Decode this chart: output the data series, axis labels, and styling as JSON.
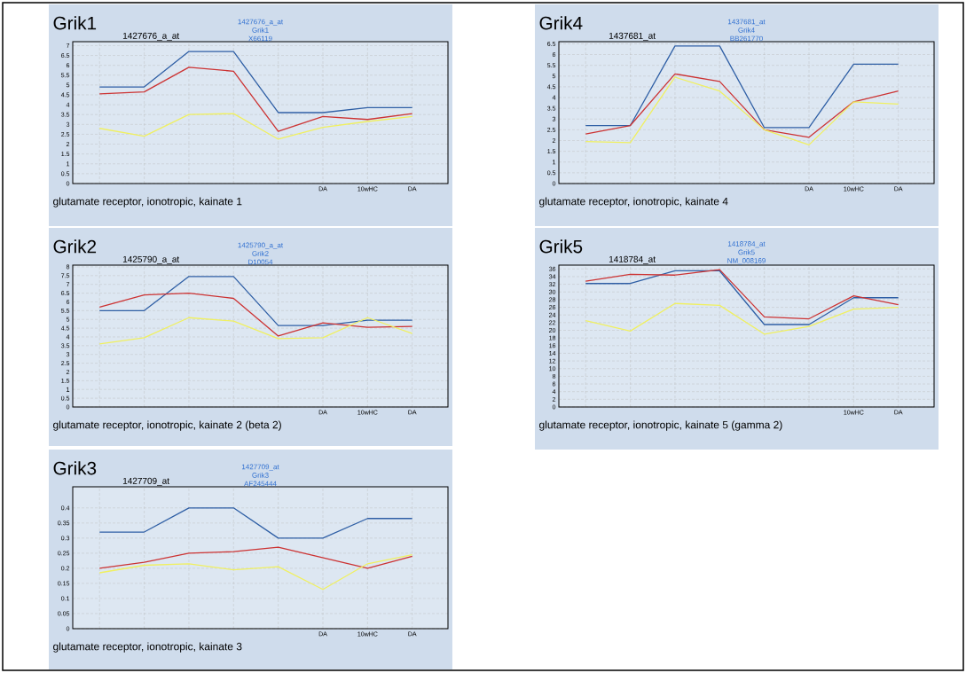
{
  "chart_data": [
    {
      "type": "line",
      "title": "Grik1",
      "subtitle": "1427676_a_at",
      "xlabel": "glutamate receptor, ionotropic, kainate 1",
      "annotations": [
        "1427676_a_at",
        "Grik1",
        "X66119"
      ],
      "categories": [
        null,
        null,
        null,
        null,
        null,
        "DA",
        "10wHC",
        "DA"
      ],
      "grid": true,
      "ylim": [
        0,
        7.2
      ],
      "yticks": [
        0,
        0.5,
        1,
        1.5,
        2,
        2.5,
        3,
        3.5,
        4,
        4.5,
        5,
        5.5,
        6,
        6.5,
        7
      ],
      "series": [
        {
          "color": "#2f5fa5",
          "values": [
            4.9,
            4.9,
            6.7,
            6.7,
            3.6,
            3.6,
            3.85,
            3.85
          ]
        },
        {
          "color": "#cc3333",
          "values": [
            4.55,
            4.65,
            5.9,
            5.7,
            2.65,
            3.4,
            3.25,
            3.55
          ]
        },
        {
          "color": "#f0f060",
          "values": [
            2.8,
            2.4,
            3.5,
            3.55,
            2.25,
            2.85,
            3.15,
            3.4
          ]
        }
      ]
    },
    {
      "type": "line",
      "title": "Grik4",
      "subtitle": "1437681_at",
      "xlabel": "glutamate receptor, ionotropic, kainate 4",
      "annotations": [
        "1437681_at",
        "Grik4",
        "BB261770"
      ],
      "categories": [
        null,
        null,
        null,
        null,
        null,
        "DA",
        "10wHC",
        "DA"
      ],
      "grid": true,
      "ylim": [
        0,
        6.6
      ],
      "yticks": [
        0,
        0.5,
        1,
        1.5,
        2,
        2.5,
        3,
        3.5,
        4,
        4.5,
        5,
        5.5,
        6,
        6.5
      ],
      "series": [
        {
          "color": "#2f5fa5",
          "values": [
            2.7,
            2.7,
            6.4,
            6.4,
            2.6,
            2.6,
            5.55,
            5.55
          ]
        },
        {
          "color": "#cc3333",
          "values": [
            2.3,
            2.7,
            5.1,
            4.75,
            2.5,
            2.15,
            3.8,
            4.3
          ]
        },
        {
          "color": "#f0f060",
          "values": [
            1.95,
            1.9,
            4.95,
            4.3,
            2.5,
            1.8,
            3.8,
            3.7
          ]
        }
      ]
    },
    {
      "type": "line",
      "title": "Grik2",
      "subtitle": "1425790_a_at",
      "xlabel": "glutamate receptor, ionotropic, kainate 2 (beta 2)",
      "annotations": [
        "1425790_a_at",
        "Grik2",
        "D10054"
      ],
      "categories": [
        null,
        null,
        null,
        null,
        null,
        "DA",
        "10wHC",
        "DA"
      ],
      "grid": true,
      "ylim": [
        0,
        8.1
      ],
      "yticks": [
        0,
        0.5,
        1,
        1.5,
        2,
        2.5,
        3,
        3.5,
        4,
        4.5,
        5,
        5.5,
        6,
        6.5,
        7,
        7.5,
        8
      ],
      "series": [
        {
          "color": "#2f5fa5",
          "values": [
            5.5,
            5.5,
            7.45,
            7.45,
            4.65,
            4.65,
            4.95,
            4.95
          ]
        },
        {
          "color": "#cc3333",
          "values": [
            5.7,
            6.4,
            6.5,
            6.2,
            4.05,
            4.8,
            4.55,
            4.6
          ]
        },
        {
          "color": "#f0f060",
          "values": [
            3.6,
            3.95,
            5.1,
            4.9,
            3.9,
            3.95,
            5.1,
            4.2
          ]
        }
      ]
    },
    {
      "type": "line",
      "title": "Grik5",
      "subtitle": "1418784_at",
      "xlabel": "glutamate receptor, ionotropic, kainate 5 (gamma 2)",
      "annotations": [
        "1418784_at",
        "Grik5",
        "NM_008169"
      ],
      "categories": [
        null,
        null,
        null,
        null,
        null,
        null,
        "10wHC",
        "DA"
      ],
      "grid": true,
      "ylim": [
        0,
        37
      ],
      "yticks": [
        0,
        2,
        4,
        6,
        8,
        10,
        12,
        14,
        16,
        18,
        20,
        22,
        24,
        26,
        28,
        30,
        32,
        34,
        36
      ],
      "series": [
        {
          "color": "#2f5fa5",
          "values": [
            32.2,
            32.2,
            35.5,
            35.5,
            21.5,
            21.5,
            28.5,
            28.5
          ]
        },
        {
          "color": "#cc3333",
          "values": [
            32.8,
            34.6,
            34.4,
            35.8,
            23.5,
            23,
            29,
            26.7
          ]
        },
        {
          "color": "#f0f060",
          "values": [
            22.5,
            19.8,
            27,
            26.5,
            19,
            21,
            25.5,
            26
          ]
        }
      ]
    },
    {
      "type": "line",
      "title": "Grik3",
      "subtitle": "1427709_at",
      "xlabel": "glutamate receptor, ionotropic, kainate 3",
      "annotations": [
        "1427709_at",
        "Grik3",
        "AF245444"
      ],
      "categories": [
        null,
        null,
        null,
        null,
        null,
        "DA",
        "10wHC",
        "DA"
      ],
      "grid": true,
      "ylim": [
        0,
        0.47
      ],
      "yticks": [
        0,
        0.05,
        0.1,
        0.15,
        0.2,
        0.25,
        0.3,
        0.35,
        0.4
      ],
      "series": [
        {
          "color": "#2f5fa5",
          "values": [
            0.32,
            0.32,
            0.4,
            0.4,
            0.3,
            0.3,
            0.365,
            0.365
          ]
        },
        {
          "color": "#cc3333",
          "values": [
            0.2,
            0.22,
            0.25,
            0.255,
            0.27,
            0.235,
            0.2,
            0.24
          ]
        },
        {
          "color": "#f0f060",
          "values": [
            0.185,
            0.21,
            0.215,
            0.195,
            0.205,
            0.13,
            0.215,
            0.245
          ]
        }
      ]
    }
  ]
}
